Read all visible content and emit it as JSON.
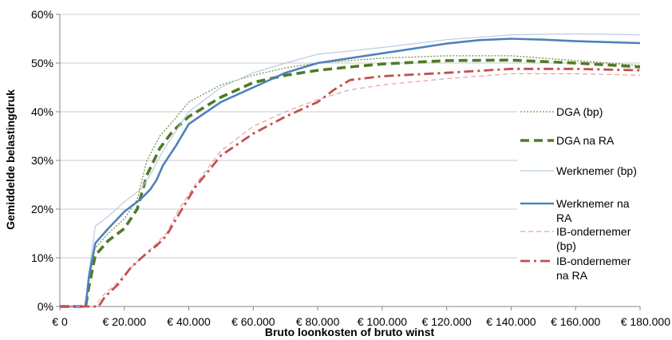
{
  "chart_data": {
    "type": "line",
    "title": "",
    "xlabel": "Bruto loonkosten of bruto winst",
    "ylabel": "Gemiddelde belastingdruk",
    "xlim": [
      0,
      180000
    ],
    "ylim": [
      0,
      60
    ],
    "x_ticks": [
      0,
      20000,
      40000,
      60000,
      80000,
      100000,
      120000,
      140000,
      160000,
      180000
    ],
    "x_tick_labels": [
      "€ 0",
      "€ 20.000",
      "€ 40.000",
      "€ 60.000",
      "€ 80.000",
      "€ 100.000",
      "€ 120.000",
      "€ 140.000",
      "€ 160.000",
      "€ 180.000"
    ],
    "y_ticks": [
      0,
      10,
      20,
      30,
      40,
      50,
      60
    ],
    "y_tick_labels": [
      "0%",
      "10%",
      "20%",
      "30%",
      "40%",
      "50%",
      "60%"
    ],
    "grid": "horizontal",
    "legend_position": "right",
    "series": [
      {
        "name": "DGA (bp)",
        "color": "#77933c",
        "style": "dotted-thin",
        "points": [
          [
            0,
            0
          ],
          [
            8000,
            0
          ],
          [
            9000,
            5
          ],
          [
            11000,
            12
          ],
          [
            15000,
            15
          ],
          [
            20000,
            18
          ],
          [
            24000,
            22
          ],
          [
            27000,
            30
          ],
          [
            31000,
            35
          ],
          [
            35000,
            38
          ],
          [
            40000,
            42
          ],
          [
            50000,
            45.5
          ],
          [
            60000,
            47.5
          ],
          [
            70000,
            49
          ],
          [
            80000,
            50
          ],
          [
            90000,
            50.5
          ],
          [
            100000,
            51
          ],
          [
            120000,
            51.5
          ],
          [
            140000,
            51.5
          ],
          [
            160000,
            50.5
          ],
          [
            180000,
            49.5
          ]
        ]
      },
      {
        "name": "DGA na RA",
        "color": "#4f7a28",
        "style": "dashed-thick",
        "points": [
          [
            0,
            0
          ],
          [
            8000,
            0
          ],
          [
            9000,
            4
          ],
          [
            11000,
            10.5
          ],
          [
            15000,
            13.5
          ],
          [
            20000,
            16
          ],
          [
            24000,
            20
          ],
          [
            27000,
            27
          ],
          [
            31000,
            32.5
          ],
          [
            35000,
            36
          ],
          [
            40000,
            39
          ],
          [
            50000,
            43
          ],
          [
            60000,
            46
          ],
          [
            70000,
            47.5
          ],
          [
            80000,
            48.5
          ],
          [
            90000,
            49.2
          ],
          [
            100000,
            49.8
          ],
          [
            120000,
            50.5
          ],
          [
            140000,
            50.6
          ],
          [
            160000,
            50
          ],
          [
            180000,
            49.2
          ]
        ]
      },
      {
        "name": "Werknemer (bp)",
        "color": "#b8cce4",
        "style": "solid-thin",
        "points": [
          [
            0,
            0
          ],
          [
            8000,
            0
          ],
          [
            9000,
            7
          ],
          [
            11000,
            16.5
          ],
          [
            15000,
            18.5
          ],
          [
            20000,
            21.5
          ],
          [
            25000,
            24
          ],
          [
            28000,
            27
          ],
          [
            32000,
            32
          ],
          [
            36000,
            36
          ],
          [
            40000,
            40
          ],
          [
            50000,
            45
          ],
          [
            60000,
            48
          ],
          [
            70000,
            50
          ],
          [
            80000,
            51.8
          ],
          [
            90000,
            52.5
          ],
          [
            100000,
            53.2
          ],
          [
            120000,
            54.8
          ],
          [
            140000,
            55.8
          ],
          [
            160000,
            56
          ],
          [
            180000,
            55.8
          ]
        ]
      },
      {
        "name": "Werknemer na RA",
        "color": "#4f81bd",
        "style": "solid-thick",
        "points": [
          [
            0,
            0
          ],
          [
            8000,
            0
          ],
          [
            9000,
            6
          ],
          [
            11000,
            13
          ],
          [
            15000,
            16
          ],
          [
            20000,
            19.5
          ],
          [
            25000,
            22
          ],
          [
            28000,
            24
          ],
          [
            30000,
            26
          ],
          [
            32000,
            29
          ],
          [
            36000,
            33
          ],
          [
            40000,
            37.5
          ],
          [
            50000,
            42
          ],
          [
            60000,
            45
          ],
          [
            70000,
            48
          ],
          [
            80000,
            50
          ],
          [
            90000,
            51
          ],
          [
            100000,
            52
          ],
          [
            120000,
            54
          ],
          [
            130000,
            54.7
          ],
          [
            140000,
            55
          ],
          [
            150000,
            54.8
          ],
          [
            160000,
            54.5
          ],
          [
            170000,
            54.3
          ],
          [
            180000,
            54.1
          ]
        ]
      },
      {
        "name": "IB-ondernemer (bp)",
        "color": "#e6a09e",
        "style": "dashed-thin",
        "points": [
          [
            0,
            0
          ],
          [
            11000,
            0
          ],
          [
            13000,
            2
          ],
          [
            18000,
            5
          ],
          [
            22000,
            8
          ],
          [
            27000,
            11
          ],
          [
            30000,
            13
          ],
          [
            33000,
            15
          ],
          [
            37000,
            20
          ],
          [
            42000,
            25
          ],
          [
            50000,
            32
          ],
          [
            60000,
            37
          ],
          [
            70000,
            40
          ],
          [
            80000,
            42.5
          ],
          [
            90000,
            44.5
          ],
          [
            100000,
            45.5
          ],
          [
            120000,
            46.8
          ],
          [
            140000,
            47.8
          ],
          [
            160000,
            47.8
          ],
          [
            180000,
            47.5
          ]
        ]
      },
      {
        "name": "IB-ondernemer na RA",
        "color": "#c0504d",
        "style": "dashdot-thick",
        "points": [
          [
            0,
            0
          ],
          [
            12000,
            0
          ],
          [
            14000,
            2
          ],
          [
            18000,
            4.5
          ],
          [
            22000,
            8
          ],
          [
            27000,
            11
          ],
          [
            30000,
            12.5
          ],
          [
            33000,
            14.5
          ],
          [
            37000,
            19
          ],
          [
            42000,
            24.5
          ],
          [
            50000,
            31
          ],
          [
            60000,
            35.5
          ],
          [
            70000,
            39
          ],
          [
            80000,
            42
          ],
          [
            85000,
            44.5
          ],
          [
            90000,
            46.5
          ],
          [
            100000,
            47.3
          ],
          [
            120000,
            48
          ],
          [
            140000,
            48.8
          ],
          [
            160000,
            48.8
          ],
          [
            180000,
            48.5
          ]
        ]
      }
    ]
  },
  "legend": [
    {
      "lines": [
        "DGA (bp)"
      ]
    },
    {
      "lines": [
        "DGA na RA"
      ]
    },
    {
      "lines": [
        "Werknemer (bp)"
      ]
    },
    {
      "lines": [
        "Werknemer na",
        "RA"
      ]
    },
    {
      "lines": [
        "IB-ondernemer",
        "(bp)"
      ]
    },
    {
      "lines": [
        "IB-ondernemer",
        "na RA"
      ]
    }
  ]
}
